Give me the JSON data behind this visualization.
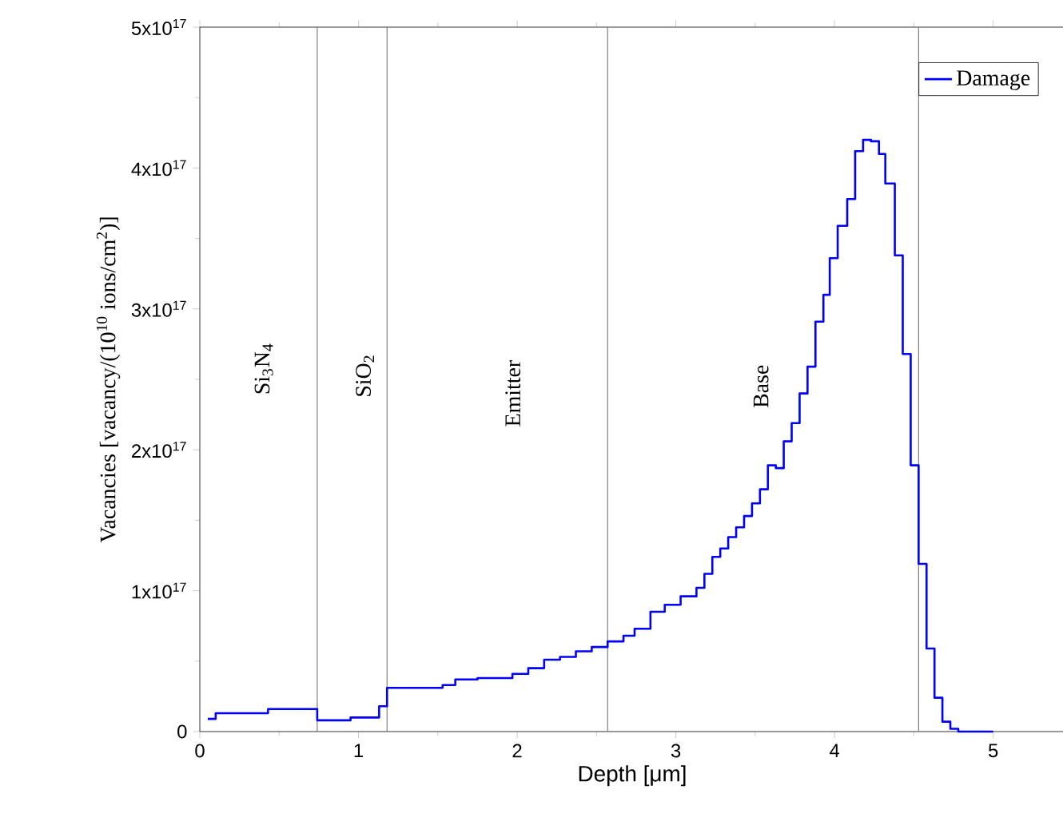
{
  "chart_data": {
    "type": "step",
    "xlabel": "Depth [μm]",
    "ylabel": "Vacancies [vacancy/(10$^{10}$ ions/cm$^{2}$)]",
    "xlim": [
      0,
      5.45
    ],
    "ylim": [
      0,
      5e+17
    ],
    "xticks": [
      0,
      1,
      2,
      3,
      4,
      5
    ],
    "yticks": [
      0,
      {
        "value": 1e+17,
        "label": "1x10$^{17}$"
      },
      {
        "value": 2e+17,
        "label": "2x10$^{17}$"
      },
      {
        "value": 3e+17,
        "label": "3x10$^{17}$"
      },
      {
        "value": 4e+17,
        "label": "4x10$^{17}$"
      },
      {
        "value": 5e+17,
        "label": "5x10$^{17}$"
      }
    ],
    "x": [
      0.05,
      0.1,
      0.43,
      0.74,
      0.95,
      1.13,
      1.18,
      1.53,
      1.61,
      1.75,
      1.97,
      2.07,
      2.17,
      2.27,
      2.37,
      2.47,
      2.57,
      2.67,
      2.74,
      2.84,
      2.93,
      3.03,
      3.13,
      3.18,
      3.23,
      3.28,
      3.33,
      3.38,
      3.43,
      3.48,
      3.53,
      3.58,
      3.63,
      3.68,
      3.73,
      3.78,
      3.83,
      3.88,
      3.93,
      3.97,
      4.02,
      4.08,
      4.13,
      4.18,
      4.23,
      4.28,
      4.32,
      4.38,
      4.43,
      4.48,
      4.53,
      4.58,
      4.63,
      4.68,
      4.73,
      4.78,
      5.0
    ],
    "series": [
      {
        "name": "Damage",
        "color": "#0000ff",
        "values": [
          9000000000000000.0,
          1.3e+16,
          1.6e+16,
          8000000000000000.0,
          1e+16,
          1.8e+16,
          3.1e+16,
          3.3e+16,
          3.7e+16,
          3.8e+16,
          4.1e+16,
          4.5e+16,
          5.1e+16,
          5.3e+16,
          5.7e+16,
          6e+16,
          6.4e+16,
          6.8e+16,
          7.3e+16,
          8.5e+16,
          9e+16,
          9.6e+16,
          1.02e+17,
          1.12e+17,
          1.24e+17,
          1.3e+17,
          1.38e+17,
          1.45e+17,
          1.53e+17,
          1.62e+17,
          1.72e+17,
          1.89e+17,
          1.87e+17,
          2.06e+17,
          2.19e+17,
          2.4e+17,
          2.59e+17,
          2.91e+17,
          3.1e+17,
          3.36e+17,
          3.59e+17,
          3.78e+17,
          4.12e+17,
          4.2e+17,
          4.19e+17,
          4.1e+17,
          3.89e+17,
          3.38e+17,
          2.68e+17,
          1.89e+17,
          1.19e+17,
          5.9e+16,
          2.4e+16,
          7000000000000000.0,
          2000000000000000.0,
          0,
          0
        ]
      }
    ],
    "ref_lines": [
      {
        "axis": "x",
        "value": 0.74,
        "color": "#808080"
      },
      {
        "axis": "x",
        "value": 1.18,
        "color": "#808080"
      },
      {
        "axis": "x",
        "value": 2.57,
        "color": "#808080"
      },
      {
        "axis": "x",
        "value": 4.53,
        "color": "#808080"
      }
    ],
    "annotations": [
      "Si$_{3}$N$_{4}$",
      "SiO$_{2}$",
      "Emitter",
      "Base"
    ],
    "legend": "top right",
    "line_style": "solid",
    "grid": false
  }
}
